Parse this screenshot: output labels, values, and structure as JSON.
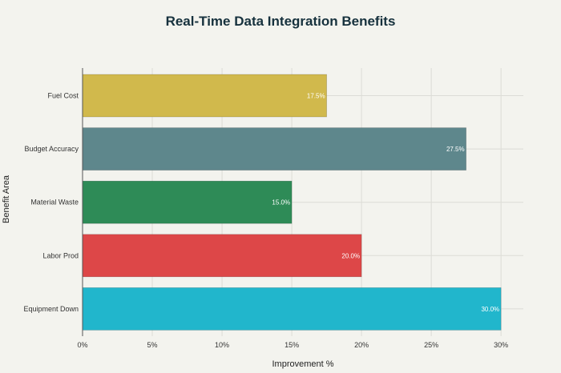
{
  "chart_data": {
    "type": "bar",
    "orientation": "horizontal",
    "title": "Real-Time Data Integration Benefits",
    "xlabel": "Improvement %",
    "ylabel": "Benefit Area",
    "categories": [
      "Fuel Cost",
      "Budget Accuracy",
      "Material Waste",
      "Labor Prod",
      "Equipment Down"
    ],
    "values": [
      17.5,
      27.5,
      15.0,
      20.0,
      30.0
    ],
    "data_labels": [
      "17.5%",
      "27.5%",
      "15.0%",
      "20.0%",
      "30.0%"
    ],
    "colors": [
      "#d1b94c",
      "#5e878c",
      "#2e8b57",
      "#dd4748",
      "#21b6cc"
    ],
    "xlim": [
      0,
      31.6
    ],
    "xticks": [
      0,
      5,
      10,
      15,
      20,
      25,
      30
    ],
    "xtick_labels": [
      "0%",
      "5%",
      "10%",
      "15%",
      "20%",
      "25%",
      "30%"
    ],
    "grid": true,
    "legend": "none"
  }
}
